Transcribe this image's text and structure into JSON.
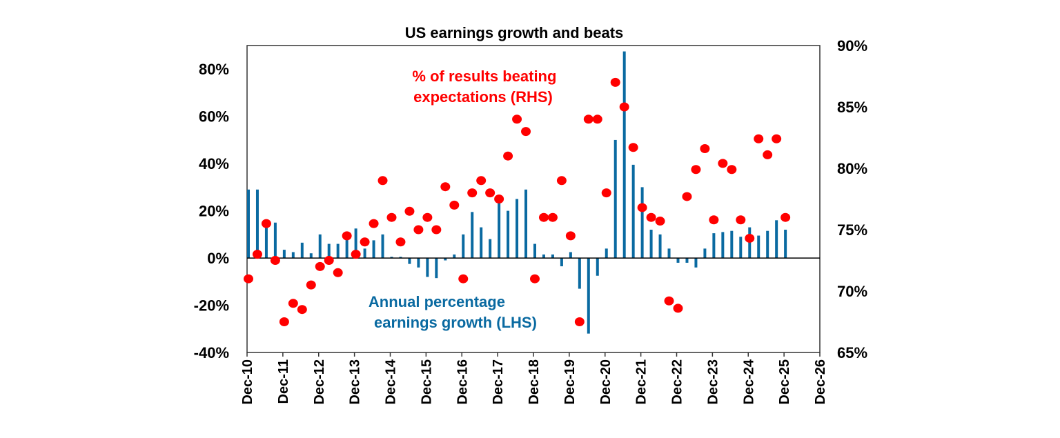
{
  "chart_data": {
    "type": "bar+scatter",
    "title": "US earnings growth and beats",
    "x_tick_labels": [
      "Dec-10",
      "Dec-11",
      "Dec-12",
      "Dec-13",
      "Dec-14",
      "Dec-15",
      "Dec-16",
      "Dec-17",
      "Dec-18",
      "Dec-19",
      "Dec-20",
      "Dec-21",
      "Dec-22",
      "Dec-23",
      "Dec-24",
      "Dec-25",
      "Dec-26"
    ],
    "left_axis": {
      "ylim": [
        -40,
        90
      ],
      "ticks": [
        -40,
        -20,
        0,
        20,
        40,
        60,
        80
      ],
      "tick_labels": [
        "-40%",
        "-20%",
        "0%",
        "20%",
        "40%",
        "60%",
        "80%"
      ]
    },
    "right_axis": {
      "ylim": [
        65,
        90
      ],
      "ticks": [
        65,
        70,
        75,
        80,
        85,
        90
      ],
      "tick_labels": [
        "65%",
        "70%",
        "75%",
        "80%",
        "85%",
        "90%"
      ]
    },
    "x_frequency": "quarterly",
    "x_start": "Dec-10",
    "series": [
      {
        "name": "Annual percentage earnings growth (LHS)",
        "label_lines": [
          "Annual percentage",
          "earnings growth (LHS)"
        ],
        "type": "bar",
        "axis": "left",
        "color": "#0a6aa1",
        "values": [
          29,
          29,
          13,
          15,
          3.5,
          2.5,
          6.5,
          2,
          10,
          6,
          6,
          9,
          12.5,
          4,
          7.5,
          10,
          0.5,
          0.5,
          -2.5,
          -4,
          -8,
          -8.5,
          -1,
          1.5,
          10,
          19.5,
          13,
          8,
          24,
          20,
          25,
          29,
          6,
          1.5,
          1.5,
          -3.5,
          2.5,
          -13,
          -32,
          -7.5,
          4,
          50,
          87.5,
          39.5,
          30,
          12,
          10,
          4,
          -2,
          -2,
          -4,
          4,
          10.5,
          11,
          11.5,
          9,
          13,
          9.5,
          11.5,
          16,
          12
        ]
      },
      {
        "name": "% of results beating expectations (RHS)",
        "label_lines": [
          "% of results beating",
          "expectations (RHS)"
        ],
        "type": "scatter",
        "axis": "right",
        "color": "#ff0000",
        "values": [
          71,
          73,
          75.5,
          72.5,
          67.5,
          69,
          68.5,
          70.5,
          72,
          72.5,
          71.5,
          74.5,
          73,
          74,
          75.5,
          79,
          76,
          74,
          76.5,
          75,
          76,
          75,
          78.5,
          77,
          71,
          78,
          79,
          78,
          77.5,
          81,
          84,
          83,
          71,
          76,
          76,
          79,
          74.5,
          67.5,
          84,
          84,
          78,
          87,
          85,
          81.7,
          76.8,
          76,
          75.7,
          69.2,
          68.6,
          77.7,
          79.9,
          81.6,
          75.8,
          80.4,
          79.9,
          75.8,
          74.3,
          82.4,
          81.1,
          82.4,
          76
        ]
      }
    ],
    "grid": false
  }
}
